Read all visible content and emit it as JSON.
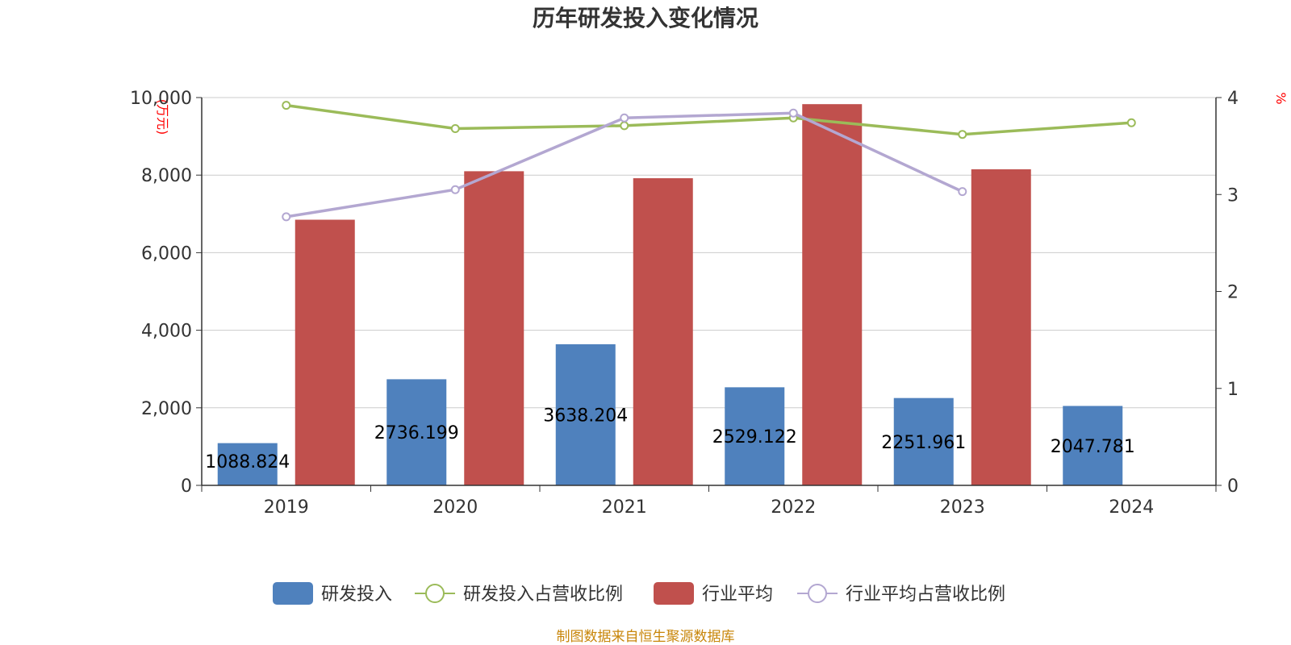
{
  "chart_data": {
    "type": "bar",
    "title": "历年研发投入变化情况",
    "categories": [
      "2019",
      "2020",
      "2021",
      "2022",
      "2023",
      "2024"
    ],
    "y_left": {
      "unit": "(万元)",
      "min": 0,
      "max": 10000,
      "ticks": [
        "0",
        "2,000",
        "4,000",
        "6,000",
        "8,000",
        "10,000"
      ]
    },
    "y_right": {
      "unit": "%",
      "min": 0,
      "max": 4,
      "ticks": [
        "0",
        "1",
        "2",
        "3",
        "4"
      ]
    },
    "grid": true,
    "legend_position": "bottom",
    "series": [
      {
        "name": "研发投入",
        "type": "bar",
        "axis": "left",
        "color": "#4f81bd",
        "values": [
          1088.824,
          2736.199,
          3638.204,
          2529.122,
          2251.961,
          2047.781
        ],
        "labels": [
          "1088.824",
          "2736.199",
          "3638.204",
          "2529.122",
          "2251.961",
          "2047.781"
        ]
      },
      {
        "name": "研发投入占营收比例",
        "type": "line",
        "axis": "right",
        "color": "#9bbb59",
        "values": [
          3.92,
          3.68,
          3.71,
          3.79,
          3.62,
          3.74
        ]
      },
      {
        "name": "行业平均",
        "type": "bar",
        "axis": "left",
        "color": "#c0504d",
        "values": [
          6850,
          8100,
          7920,
          9830,
          8150,
          null
        ]
      },
      {
        "name": "行业平均占营收比例",
        "type": "line",
        "axis": "right",
        "color": "#b3a7d1",
        "values": [
          2.77,
          3.05,
          3.79,
          3.84,
          3.03,
          null
        ]
      }
    ]
  },
  "source_text": "制图数据来自恒生聚源数据库"
}
